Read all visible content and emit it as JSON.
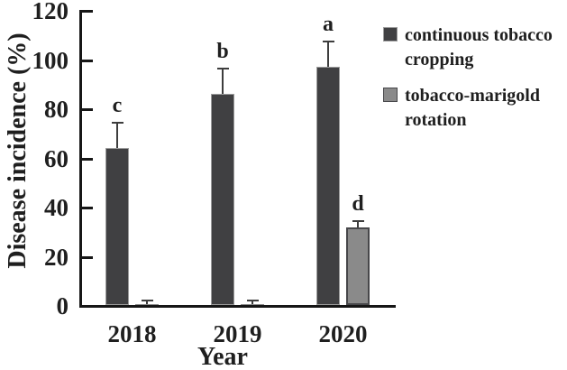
{
  "chart_data": {
    "type": "bar",
    "title": "",
    "xlabel": "Year",
    "ylabel": "Disease incidence (%)",
    "categories": [
      "2018",
      "2019",
      "2020"
    ],
    "series": [
      {
        "name": "continuous tobacco cropping",
        "values": [
          64,
          86,
          97
        ],
        "errors_plus": [
          10,
          10,
          10
        ],
        "sig_letters": [
          "c",
          "b",
          "a"
        ],
        "fill": "#404042",
        "border": "#9b9b9b",
        "border_width": 1
      },
      {
        "name": "tobacco-marigold rotation",
        "values": [
          0.5,
          0.5,
          31.5
        ],
        "errors_plus": [
          1.5,
          1.5,
          2.5
        ],
        "sig_letters": [
          "",
          "",
          "d"
        ],
        "fill": "#8a8a8a",
        "border": "#47474a",
        "border_width": 2
      }
    ],
    "ylim": [
      0,
      120
    ],
    "yticks": [
      0,
      20,
      40,
      60,
      80,
      100,
      120
    ],
    "grid": false,
    "legend_position": "right",
    "axis_color": "#161616",
    "error_color": "#3d3d3d",
    "text_color": "#1f1f1f"
  }
}
